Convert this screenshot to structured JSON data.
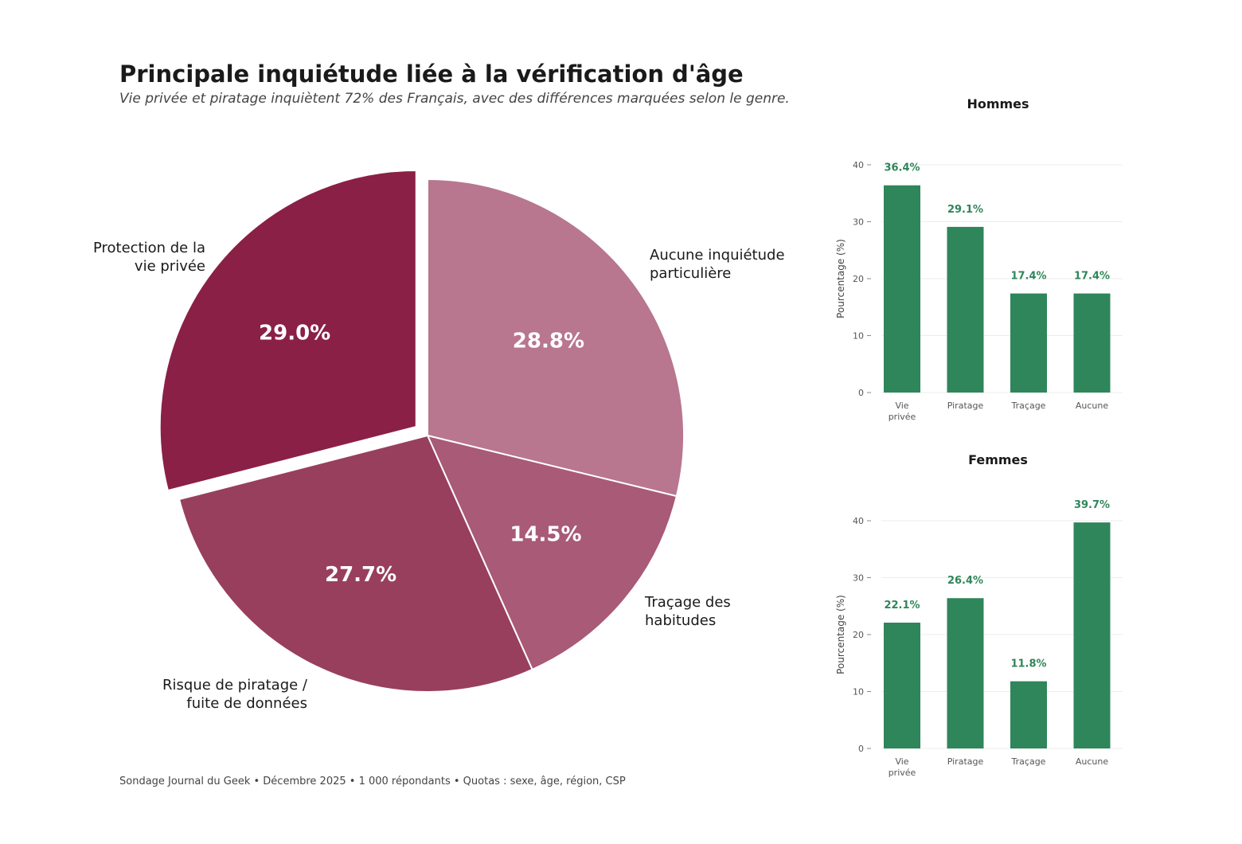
{
  "title": "Principale inquiétude liée à la vérification d'âge",
  "subtitle": "Vie privée et piratage inquiètent 72% des Français, avec des différences marquées selon le genre.",
  "footer": "Sondage Journal du Geek • Décembre 2025 • 1 000 répondants • Quotas : sexe, âge, région, CSP",
  "chart_data": [
    {
      "type": "pie",
      "slices": [
        {
          "label": "Aucune inquiétude\nparticulière",
          "value": 28.8,
          "value_label": "28.8%",
          "color": "#b8768f",
          "exploded": false
        },
        {
          "label": "Traçage des\nhabitudes",
          "value": 14.5,
          "value_label": "14.5%",
          "color": "#a85a77",
          "exploded": false
        },
        {
          "label": "Risque de piratage /\nfuite de données",
          "value": 27.7,
          "value_label": "27.7%",
          "color": "#983f5e",
          "exploded": false
        },
        {
          "label": "Protection de la\nvie privée",
          "value": 29.0,
          "value_label": "29.0%",
          "color": "#8a2046",
          "exploded": true
        }
      ],
      "start_angle": "top",
      "direction": "clockwise"
    },
    {
      "type": "bar",
      "title": "Hommes",
      "categories": [
        "Vie\nprivée",
        "Piratage",
        "Traçage",
        "Aucune"
      ],
      "values": [
        36.4,
        29.1,
        17.4,
        17.4
      ],
      "value_labels": [
        "36.4%",
        "29.1%",
        "17.4%",
        "17.4%"
      ],
      "ylabel": "Pourcentage (%)",
      "yticks": [
        0,
        10,
        20,
        30,
        40
      ],
      "ylim": [
        0,
        43
      ],
      "grid": true,
      "color": "#2e865a"
    },
    {
      "type": "bar",
      "title": "Femmes",
      "categories": [
        "Vie\nprivée",
        "Piratage",
        "Traçage",
        "Aucune"
      ],
      "values": [
        22.1,
        26.4,
        11.8,
        39.7
      ],
      "value_labels": [
        "22.1%",
        "26.4%",
        "11.8%",
        "39.7%"
      ],
      "ylabel": "Pourcentage (%)",
      "yticks": [
        0,
        10,
        20,
        30,
        40
      ],
      "ylim": [
        0,
        43
      ],
      "grid": true,
      "color": "#2e865a"
    }
  ]
}
